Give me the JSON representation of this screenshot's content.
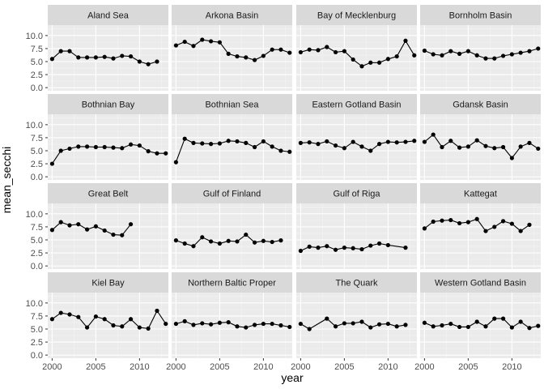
{
  "chart_data": {
    "type": "line",
    "xlabel": "year",
    "ylabel": "mean_secchi",
    "xlim": [
      1999.5,
      2013.3
    ],
    "ylim": [
      -0.6,
      12.0
    ],
    "x_ticks": [
      2000,
      2005,
      2010
    ],
    "y_ticks": [
      0.0,
      2.5,
      5.0,
      7.5,
      10.0
    ],
    "x_tick_labels": [
      "2000",
      "2005",
      "2010"
    ],
    "y_tick_labels": [
      "0.0",
      "2.5",
      "5.0",
      "7.5",
      "10.0"
    ],
    "grid": true,
    "layout": "facet_wrap 4x4",
    "colors": {
      "panel": "#ebebeb",
      "strip": "#d9d9d9",
      "grid_major": "#ffffff",
      "line": "#000000"
    },
    "panels": [
      {
        "name": "Aland Sea",
        "x": [
          2000,
          2001,
          2002,
          2003,
          2004,
          2005,
          2006,
          2007,
          2008,
          2009,
          2010,
          2011,
          2012
        ],
        "y": [
          5.5,
          7.0,
          7.0,
          5.8,
          5.8,
          5.8,
          5.9,
          5.6,
          6.1,
          6.0,
          5.0,
          4.5,
          5.0
        ]
      },
      {
        "name": "Arkona Basin",
        "x": [
          2000,
          2001,
          2002,
          2003,
          2004,
          2005,
          2006,
          2007,
          2008,
          2009,
          2010,
          2011,
          2012,
          2013
        ],
        "y": [
          8.1,
          8.8,
          8.0,
          9.2,
          8.9,
          8.7,
          6.5,
          6.0,
          5.8,
          5.3,
          6.1,
          7.3,
          7.3,
          6.7
        ]
      },
      {
        "name": "Bay of Mecklenburg",
        "x": [
          2000,
          2001,
          2002,
          2003,
          2004,
          2005,
          2006,
          2007,
          2008,
          2009,
          2010,
          2011,
          2012,
          2013
        ],
        "y": [
          6.8,
          7.3,
          7.2,
          7.8,
          6.8,
          7.0,
          5.4,
          4.1,
          4.8,
          4.8,
          5.5,
          6.0,
          9.0,
          6.2
        ]
      },
      {
        "name": "Bornholm Basin",
        "x": [
          2000,
          2001,
          2002,
          2003,
          2004,
          2005,
          2006,
          2007,
          2008,
          2009,
          2010,
          2011,
          2012,
          2013
        ],
        "y": [
          7.1,
          6.4,
          6.2,
          7.0,
          6.5,
          7.0,
          6.2,
          5.6,
          5.6,
          6.1,
          6.4,
          6.7,
          7.0,
          7.5
        ]
      },
      {
        "name": "Bothnian Bay",
        "x": [
          2000,
          2001,
          2002,
          2003,
          2004,
          2005,
          2006,
          2007,
          2008,
          2009,
          2010,
          2011,
          2012,
          2013
        ],
        "y": [
          2.5,
          5.0,
          5.4,
          5.8,
          5.8,
          5.7,
          5.7,
          5.6,
          5.5,
          6.2,
          6.0,
          4.9,
          4.5,
          4.5
        ]
      },
      {
        "name": "Bothnian Sea",
        "x": [
          2000,
          2001,
          2002,
          2003,
          2004,
          2005,
          2006,
          2007,
          2008,
          2009,
          2010,
          2011,
          2012,
          2013
        ],
        "y": [
          2.8,
          7.3,
          6.5,
          6.4,
          6.3,
          6.4,
          6.9,
          6.8,
          6.5,
          5.7,
          6.8,
          5.8,
          5.0,
          4.8
        ]
      },
      {
        "name": "Eastern Gotland Basin",
        "x": [
          2000,
          2001,
          2002,
          2003,
          2004,
          2005,
          2006,
          2007,
          2008,
          2009,
          2010,
          2011,
          2012,
          2013
        ],
        "y": [
          6.5,
          6.6,
          6.3,
          6.8,
          6.0,
          5.5,
          6.7,
          5.8,
          5.0,
          6.3,
          6.7,
          6.6,
          6.7,
          6.9
        ]
      },
      {
        "name": "Gdansk Basin",
        "x": [
          2000,
          2001,
          2002,
          2003,
          2004,
          2005,
          2006,
          2007,
          2008,
          2009,
          2010,
          2011,
          2012,
          2013
        ],
        "y": [
          6.7,
          8.1,
          5.7,
          6.9,
          5.6,
          5.8,
          7.0,
          5.9,
          5.5,
          5.7,
          3.6,
          5.8,
          6.5,
          5.4
        ]
      },
      {
        "name": "Great Belt",
        "x": [
          2000,
          2001,
          2002,
          2003,
          2004,
          2005,
          2006,
          2007,
          2008,
          2009
        ],
        "y": [
          6.9,
          8.4,
          7.8,
          8.0,
          7.0,
          7.6,
          6.8,
          6.0,
          5.9,
          8.0
        ]
      },
      {
        "name": "Gulf of Finland",
        "x": [
          2000,
          2001,
          2002,
          2003,
          2004,
          2005,
          2006,
          2007,
          2008,
          2009,
          2010,
          2011,
          2012
        ],
        "y": [
          4.9,
          4.3,
          3.8,
          5.5,
          4.7,
          4.3,
          4.8,
          4.7,
          6.0,
          4.5,
          4.8,
          4.6,
          4.9
        ]
      },
      {
        "name": "Gulf of Riga",
        "x": [
          2000,
          2001,
          2002,
          2003,
          2004,
          2005,
          2006,
          2007,
          2008,
          2009,
          2010,
          2012
        ],
        "y": [
          2.9,
          3.7,
          3.5,
          3.8,
          3.1,
          3.5,
          3.4,
          3.2,
          3.9,
          4.3,
          4.0,
          3.5
        ]
      },
      {
        "name": "Kattegat",
        "x": [
          2000,
          2001,
          2002,
          2003,
          2004,
          2005,
          2006,
          2007,
          2008,
          2009,
          2010,
          2011,
          2012
        ],
        "y": [
          7.2,
          8.5,
          8.7,
          8.8,
          8.2,
          8.4,
          9.0,
          6.7,
          7.5,
          8.6,
          8.1,
          6.7,
          7.9
        ]
      },
      {
        "name": "Kiel Bay",
        "x": [
          2000,
          2001,
          2002,
          2003,
          2004,
          2005,
          2006,
          2007,
          2008,
          2009,
          2010,
          2011,
          2012,
          2013
        ],
        "y": [
          6.9,
          8.1,
          7.8,
          7.3,
          5.3,
          7.4,
          6.9,
          5.7,
          5.5,
          6.9,
          5.3,
          5.1,
          8.5,
          6.0
        ]
      },
      {
        "name": "Northern Baltic Proper",
        "x": [
          2000,
          2001,
          2002,
          2003,
          2004,
          2005,
          2006,
          2007,
          2008,
          2009,
          2010,
          2011,
          2012,
          2013
        ],
        "y": [
          6.0,
          6.5,
          5.8,
          6.1,
          5.9,
          6.2,
          6.3,
          5.5,
          5.3,
          5.8,
          6.0,
          6.0,
          5.7,
          5.4
        ]
      },
      {
        "name": "The Quark",
        "x": [
          2000,
          2001,
          2003,
          2004,
          2005,
          2006,
          2007,
          2008,
          2009,
          2010,
          2011,
          2012
        ],
        "y": [
          6.0,
          5.0,
          7.0,
          5.5,
          6.1,
          6.1,
          6.4,
          5.3,
          5.9,
          6.0,
          5.5,
          5.8
        ]
      },
      {
        "name": "Western Gotland Basin",
        "x": [
          2000,
          2001,
          2002,
          2003,
          2004,
          2005,
          2006,
          2007,
          2008,
          2009,
          2010,
          2011,
          2012,
          2013
        ],
        "y": [
          6.2,
          5.5,
          5.7,
          6.0,
          5.4,
          5.4,
          6.4,
          5.5,
          7.0,
          7.0,
          5.3,
          6.4,
          5.2,
          5.6
        ]
      }
    ]
  }
}
